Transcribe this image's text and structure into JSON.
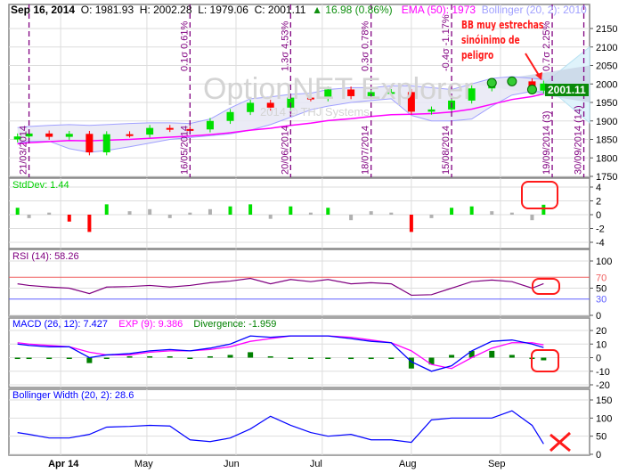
{
  "header": {
    "date": "Sep 16, 2014",
    "open": "O: 1981.93",
    "high": "H: 2002.28",
    "low": "L: 1979.06",
    "close": "C: 2001.11",
    "change": "▲ 16.98 (0.86%)",
    "ema": "EMA (50): 1973",
    "bollinger": "Bollinger (20, 2): 2010"
  },
  "last_price_label": "2001.11",
  "watermark": {
    "title": "OptionNET Explorer",
    "copyright": "2014 © THJ Systems"
  },
  "annotation": {
    "line1": "BB muy estrechas",
    "line2": "sinóinimo de",
    "line3": "peligro"
  },
  "panels": {
    "stddev": "StdDev: 1.44",
    "rsi": "RSI (14): 58.26",
    "macd": "MACD (26, 12): 7.427",
    "exp": "EXP (9): 9.386",
    "divergence": "Divergence: -1.959",
    "bwidth": "Bollinger Width (20, 2): 28.6"
  },
  "colors": {
    "up": "#00e000",
    "down": "#ff0000",
    "ema": "#ff00ff",
    "bollinger": "#a0a0ff",
    "rsi": "#800080",
    "macd": "#0000ff",
    "signal": "#ff00ff",
    "divergence": "#008000",
    "bwidth": "#0000ff",
    "annotation": "#ff1a1a",
    "markers": "#800080"
  },
  "chart_data": {
    "type": "candlestick",
    "x_tick_labels": [
      "Apr 14",
      "May",
      "Jun",
      "Jul",
      "Aug",
      "Sep"
    ],
    "x_ticks": [
      "2014-04-01",
      "2014-05-01",
      "2014-06-01",
      "2014-07-01",
      "2014-08-01",
      "2014-09-01"
    ],
    "xlim": [
      "2014-03-14",
      "2014-10-02"
    ],
    "dates": [
      "2014-03-17",
      "2014-03-21",
      "2014-03-28",
      "2014-04-04",
      "2014-04-11",
      "2014-04-17",
      "2014-04-25",
      "2014-05-02",
      "2014-05-09",
      "2014-05-16",
      "2014-05-23",
      "2014-05-30",
      "2014-06-06",
      "2014-06-13",
      "2014-06-20",
      "2014-06-27",
      "2014-07-03",
      "2014-07-11",
      "2014-07-18",
      "2014-07-25",
      "2014-08-01",
      "2014-08-08",
      "2014-08-15",
      "2014-08-22",
      "2014-08-29",
      "2014-09-05",
      "2014-09-12",
      "2014-09-16"
    ],
    "close": [
      1858,
      1866,
      1857,
      1865,
      1815,
      1864,
      1863,
      1881,
      1878,
      1877,
      1900,
      1924,
      1949,
      1936,
      1963,
      1961,
      1985,
      1967,
      1978,
      1978,
      1925,
      1931,
      1955,
      1988,
      2003,
      2007,
      1985,
      2001.11
    ],
    "open": [
      1850,
      1858,
      1866,
      1857,
      1865,
      1815,
      1864,
      1863,
      1881,
      1878,
      1877,
      1900,
      1924,
      1949,
      1936,
      1963,
      1961,
      1985,
      1967,
      1978,
      1978,
      1925,
      1931,
      1955,
      1988,
      2003,
      2007,
      1981.93
    ],
    "ema50": [
      1838,
      1841,
      1844,
      1847,
      1846,
      1848,
      1850,
      1853,
      1856,
      1859,
      1863,
      1868,
      1875,
      1880,
      1888,
      1894,
      1901,
      1906,
      1912,
      1917,
      1918,
      1920,
      1924,
      1932,
      1945,
      1958,
      1966,
      1973
    ],
    "bb_upper": [
      1882,
      1885,
      1888,
      1890,
      1888,
      1890,
      1893,
      1895,
      1895,
      1893,
      1905,
      1935,
      1960,
      1965,
      1972,
      1975,
      1985,
      1990,
      1990,
      1995,
      1995,
      1990,
      1985,
      2000,
      2015,
      2020,
      2015,
      2012
    ],
    "bb_lower": [
      1840,
      1845,
      1845,
      1825,
      1815,
      1820,
      1830,
      1840,
      1850,
      1855,
      1860,
      1865,
      1875,
      1890,
      1910,
      1930,
      1940,
      1950,
      1955,
      1960,
      1915,
      1900,
      1900,
      1905,
      1940,
      1970,
      1980,
      1978
    ],
    "price_ylim": [
      1750,
      2200
    ],
    "price_ticks": [
      1750,
      1800,
      1850,
      1900,
      1950,
      2000,
      2050,
      2100,
      2150
    ],
    "projection": {
      "from": "2014-09-16",
      "to": "2014-10-02",
      "outer": [
        2100,
        1895
      ],
      "inner": [
        2050,
        1950
      ]
    },
    "markers": [
      {
        "date": "2014-03-21",
        "bottom": "21/03/2014"
      },
      {
        "date": "2014-05-16",
        "top": "0.1σ 0.61%",
        "bottom": "16/05/2014"
      },
      {
        "date": "2014-06-20",
        "top": "1.3σ 4.53%",
        "bottom": "20/06/2014"
      },
      {
        "date": "2014-07-18",
        "top": "0.3σ 0.78%",
        "bottom": "18/07/2014"
      },
      {
        "date": "2014-08-15",
        "top": "-0.4σ -1.17%",
        "bottom": "15/08/2014"
      },
      {
        "date": "2014-09-19",
        "top": "0.7σ 2.25%",
        "bottom": "19/09/2014 (3)"
      },
      {
        "date": "2014-09-30",
        "bottom": "30/09/2014 (14)"
      }
    ],
    "stddev": {
      "values": [
        1,
        -0.5,
        0.3,
        -1,
        -2.5,
        1.5,
        0.5,
        0.8,
        -0.5,
        0.3,
        0.8,
        1.2,
        1.5,
        -0.6,
        1.2,
        0.3,
        1,
        -0.8,
        0.5,
        0.3,
        -2.5,
        -0.5,
        1,
        1.2,
        0.5,
        0.3,
        -0.8,
        1.44
      ],
      "ylim": [
        -4,
        4
      ],
      "ticks": [
        -4,
        -2,
        0,
        2,
        4
      ]
    },
    "rsi": {
      "values": [
        58,
        55,
        52,
        50,
        40,
        52,
        53,
        55,
        52,
        55,
        60,
        63,
        68,
        58,
        66,
        62,
        66,
        58,
        60,
        58,
        37,
        38,
        50,
        62,
        65,
        62,
        50,
        58.26
      ],
      "ylim": [
        0,
        100
      ],
      "ticks": [
        0,
        50,
        100
      ],
      "levels": [
        30,
        70
      ]
    },
    "macd": {
      "macd": [
        10,
        9,
        8,
        8,
        0,
        2,
        3,
        5,
        6,
        5,
        7,
        10,
        16,
        15,
        16,
        16,
        16,
        14,
        12,
        11,
        -3,
        -10,
        -6,
        5,
        12,
        13,
        10,
        7.427
      ],
      "signal": [
        11,
        10,
        9,
        8,
        4,
        2,
        2,
        4,
        5,
        5,
        6,
        8,
        12,
        14,
        16,
        16,
        16,
        15,
        13,
        11,
        5,
        -5,
        -8,
        0,
        7,
        11,
        11,
        9.386
      ],
      "ylim": [
        -20,
        20
      ],
      "ticks": [
        -20,
        -10,
        0,
        10,
        20
      ]
    },
    "bwidth": {
      "values": [
        60,
        55,
        45,
        45,
        55,
        75,
        77,
        80,
        78,
        40,
        35,
        45,
        70,
        105,
        80,
        60,
        50,
        55,
        40,
        40,
        33,
        95,
        100,
        100,
        100,
        120,
        80,
        28.6
      ],
      "ylim": [
        0,
        150
      ],
      "ticks": [
        0,
        50,
        100,
        150
      ]
    }
  }
}
